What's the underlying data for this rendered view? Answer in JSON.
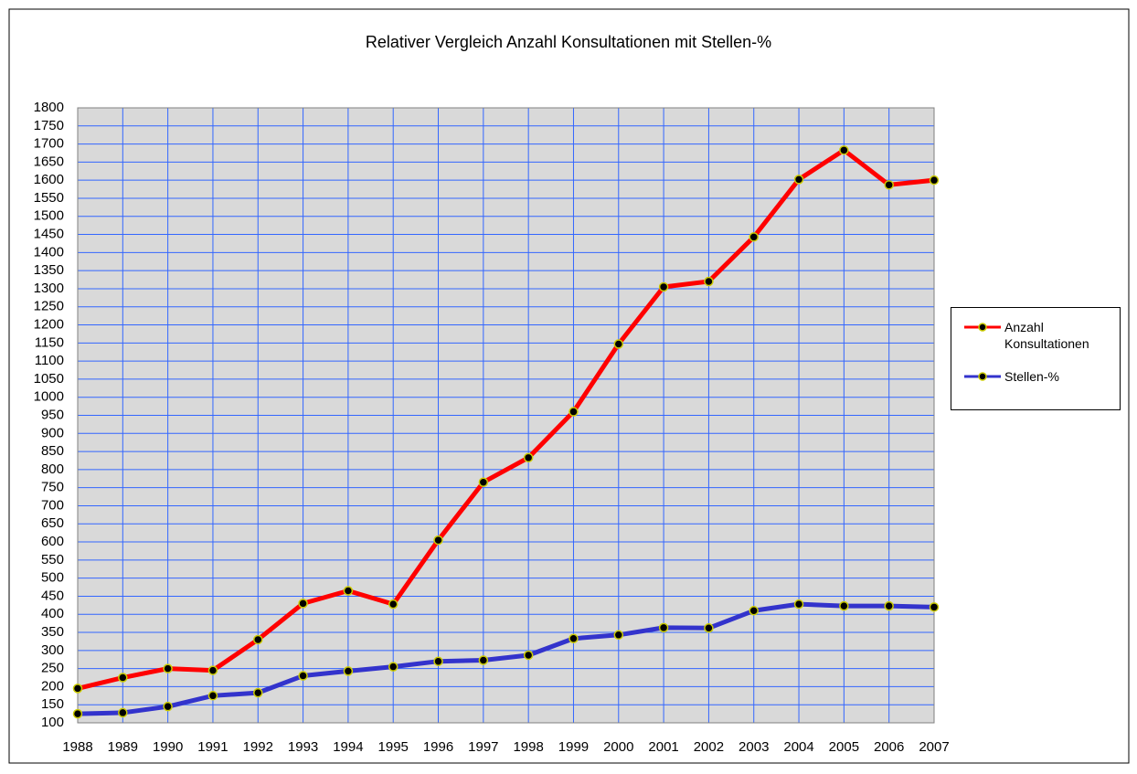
{
  "chart_data": {
    "type": "line",
    "title": "Relativer Vergleich Anzahl Konsultationen mit Stellen-%",
    "categories": [
      "1988",
      "1989",
      "1990",
      "1991",
      "1992",
      "1993",
      "1994",
      "1995",
      "1996",
      "1997",
      "1998",
      "1999",
      "2000",
      "2001",
      "2002",
      "2003",
      "2004",
      "2005",
      "2006",
      "2007"
    ],
    "series": [
      {
        "name": "Anzahl Konsultationen",
        "color": "#ff0000",
        "values": [
          195,
          225,
          250,
          245,
          330,
          430,
          465,
          428,
          605,
          765,
          833,
          960,
          1147,
          1305,
          1320,
          1443,
          1602,
          1683,
          1587,
          1600
        ]
      },
      {
        "name": "Stellen-%",
        "color": "#3333cc",
        "values": [
          125,
          128,
          145,
          175,
          183,
          230,
          243,
          255,
          270,
          273,
          287,
          333,
          343,
          363,
          362,
          410,
          428,
          423,
          423,
          420
        ]
      }
    ],
    "ylim": [
      100,
      1800
    ],
    "yticks": [
      100,
      150,
      200,
      250,
      300,
      350,
      400,
      450,
      500,
      550,
      600,
      650,
      700,
      750,
      800,
      850,
      900,
      950,
      1000,
      1050,
      1100,
      1150,
      1200,
      1250,
      1300,
      1350,
      1400,
      1450,
      1500,
      1550,
      1600,
      1650,
      1700,
      1750,
      1800
    ],
    "grid": true,
    "legend": "right"
  }
}
